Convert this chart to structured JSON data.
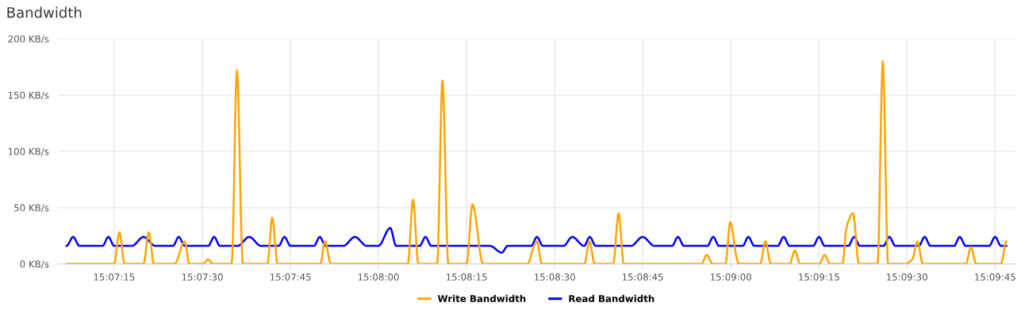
{
  "chart_data": {
    "type": "line",
    "title": "Bandwidth",
    "xlim": [
      15.11817,
      15.16347
    ],
    "ylim": [
      0,
      200
    ],
    "xticks": [
      {
        "value": 15.12083,
        "label": "15:07:15"
      },
      {
        "value": 15.125,
        "label": "15:07:30"
      },
      {
        "value": 15.12917,
        "label": "15:07:45"
      },
      {
        "value": 15.13333,
        "label": "15:08:00"
      },
      {
        "value": 15.1375,
        "label": "15:08:15"
      },
      {
        "value": 15.14167,
        "label": "15:08:30"
      },
      {
        "value": 15.14583,
        "label": "15:08:45"
      },
      {
        "value": 15.15,
        "label": "15:09:00"
      },
      {
        "value": 15.15417,
        "label": "15:09:15"
      },
      {
        "value": 15.15833,
        "label": "15:09:30"
      },
      {
        "value": 15.1625,
        "label": "15:09:45"
      }
    ],
    "yticks": [
      {
        "value": 0,
        "label": "0 KB/s"
      },
      {
        "value": 50,
        "label": "50 KB/s"
      },
      {
        "value": 100,
        "label": "100 KB/s"
      },
      {
        "value": 150,
        "label": "150 KB/s"
      },
      {
        "value": 200,
        "label": "200 KB/s"
      }
    ],
    "grid": true,
    "legend": "bottom",
    "marker": "none",
    "line_style": "solid",
    "series": [
      {
        "name": "Write Bandwidth",
        "color": "#ffa500",
        "x": [
          15.11861,
          15.12083,
          15.12108,
          15.12133,
          15.12222,
          15.12247,
          15.12272,
          15.12369,
          15.12417,
          15.12439,
          15.12503,
          15.12528,
          15.1255,
          15.12639,
          15.12664,
          15.12692,
          15.12808,
          15.12831,
          15.12856,
          15.13058,
          15.13081,
          15.13108,
          15.13472,
          15.13497,
          15.13522,
          15.13611,
          15.13636,
          15.13664,
          15.1375,
          15.13778,
          15.13828,
          15.14036,
          15.14083,
          15.14106,
          15.14308,
          15.14331,
          15.14356,
          15.14444,
          15.14469,
          15.14494,
          15.14861,
          15.14886,
          15.14914,
          15.14975,
          15.14997,
          15.15028,
          15.15039,
          15.15139,
          15.15164,
          15.15189,
          15.15278,
          15.15303,
          15.15328,
          15.15419,
          15.15444,
          15.15469,
          15.15528,
          15.15547,
          15.15578,
          15.15606,
          15.15694,
          15.15719,
          15.15744,
          15.15822,
          15.15858,
          15.15883,
          15.15908,
          15.16111,
          15.16136,
          15.16161,
          15.16278,
          15.16303
        ],
        "values": [
          0,
          0,
          28,
          0,
          0,
          28,
          0,
          0,
          20,
          0,
          0,
          4,
          0,
          0,
          172,
          0,
          0,
          41,
          0,
          0,
          20,
          0,
          0,
          57,
          0,
          0,
          163,
          0,
          0,
          53,
          0,
          0,
          20,
          0,
          0,
          20,
          0,
          0,
          45,
          0,
          0,
          8,
          0,
          0,
          37,
          5,
          0,
          0,
          20,
          0,
          0,
          12,
          0,
          0,
          8,
          0,
          0,
          32,
          45,
          0,
          0,
          180,
          0,
          0,
          4,
          20,
          0,
          0,
          15,
          0,
          0,
          20
        ]
      },
      {
        "name": "Read Bandwidth",
        "color": "#0000ff",
        "x": [
          15.11858,
          15.11889,
          15.11919,
          15.12028,
          15.12056,
          15.12083,
          15.12167,
          15.12222,
          15.12278,
          15.12361,
          15.12389,
          15.12417,
          15.12528,
          15.12556,
          15.12583,
          15.12667,
          15.12722,
          15.12778,
          15.12861,
          15.12889,
          15.12917,
          15.13028,
          15.13056,
          15.13083,
          15.13167,
          15.13222,
          15.13278,
          15.13333,
          15.13389,
          15.13417,
          15.13528,
          15.13556,
          15.13583,
          15.13861,
          15.13917,
          15.13944,
          15.14056,
          15.14083,
          15.14111,
          15.14208,
          15.1425,
          15.14306,
          15.14333,
          15.14361,
          15.14528,
          15.14583,
          15.14639,
          15.14722,
          15.1475,
          15.14778,
          15.14889,
          15.14917,
          15.14944,
          15.15056,
          15.15083,
          15.15111,
          15.15222,
          15.1525,
          15.15278,
          15.15389,
          15.15417,
          15.15444,
          15.15556,
          15.15583,
          15.15611,
          15.15722,
          15.1575,
          15.15778,
          15.15889,
          15.15917,
          15.15944,
          15.16056,
          15.16083,
          15.16111,
          15.16222,
          15.1625,
          15.16278,
          15.16303
        ],
        "values": [
          16,
          24,
          16,
          16,
          24,
          16,
          16,
          24,
          16,
          16,
          24,
          16,
          16,
          24,
          16,
          16,
          24,
          16,
          16,
          24,
          16,
          16,
          24,
          16,
          16,
          24,
          16,
          16,
          32,
          16,
          16,
          24,
          16,
          16,
          10,
          16,
          16,
          24,
          16,
          16,
          24,
          16,
          24,
          16,
          16,
          24,
          16,
          16,
          24,
          16,
          16,
          24,
          16,
          16,
          24,
          16,
          16,
          24,
          16,
          16,
          24,
          16,
          16,
          24,
          16,
          16,
          24,
          16,
          16,
          24,
          16,
          16,
          24,
          16,
          16,
          24,
          16,
          16
        ]
      }
    ]
  }
}
